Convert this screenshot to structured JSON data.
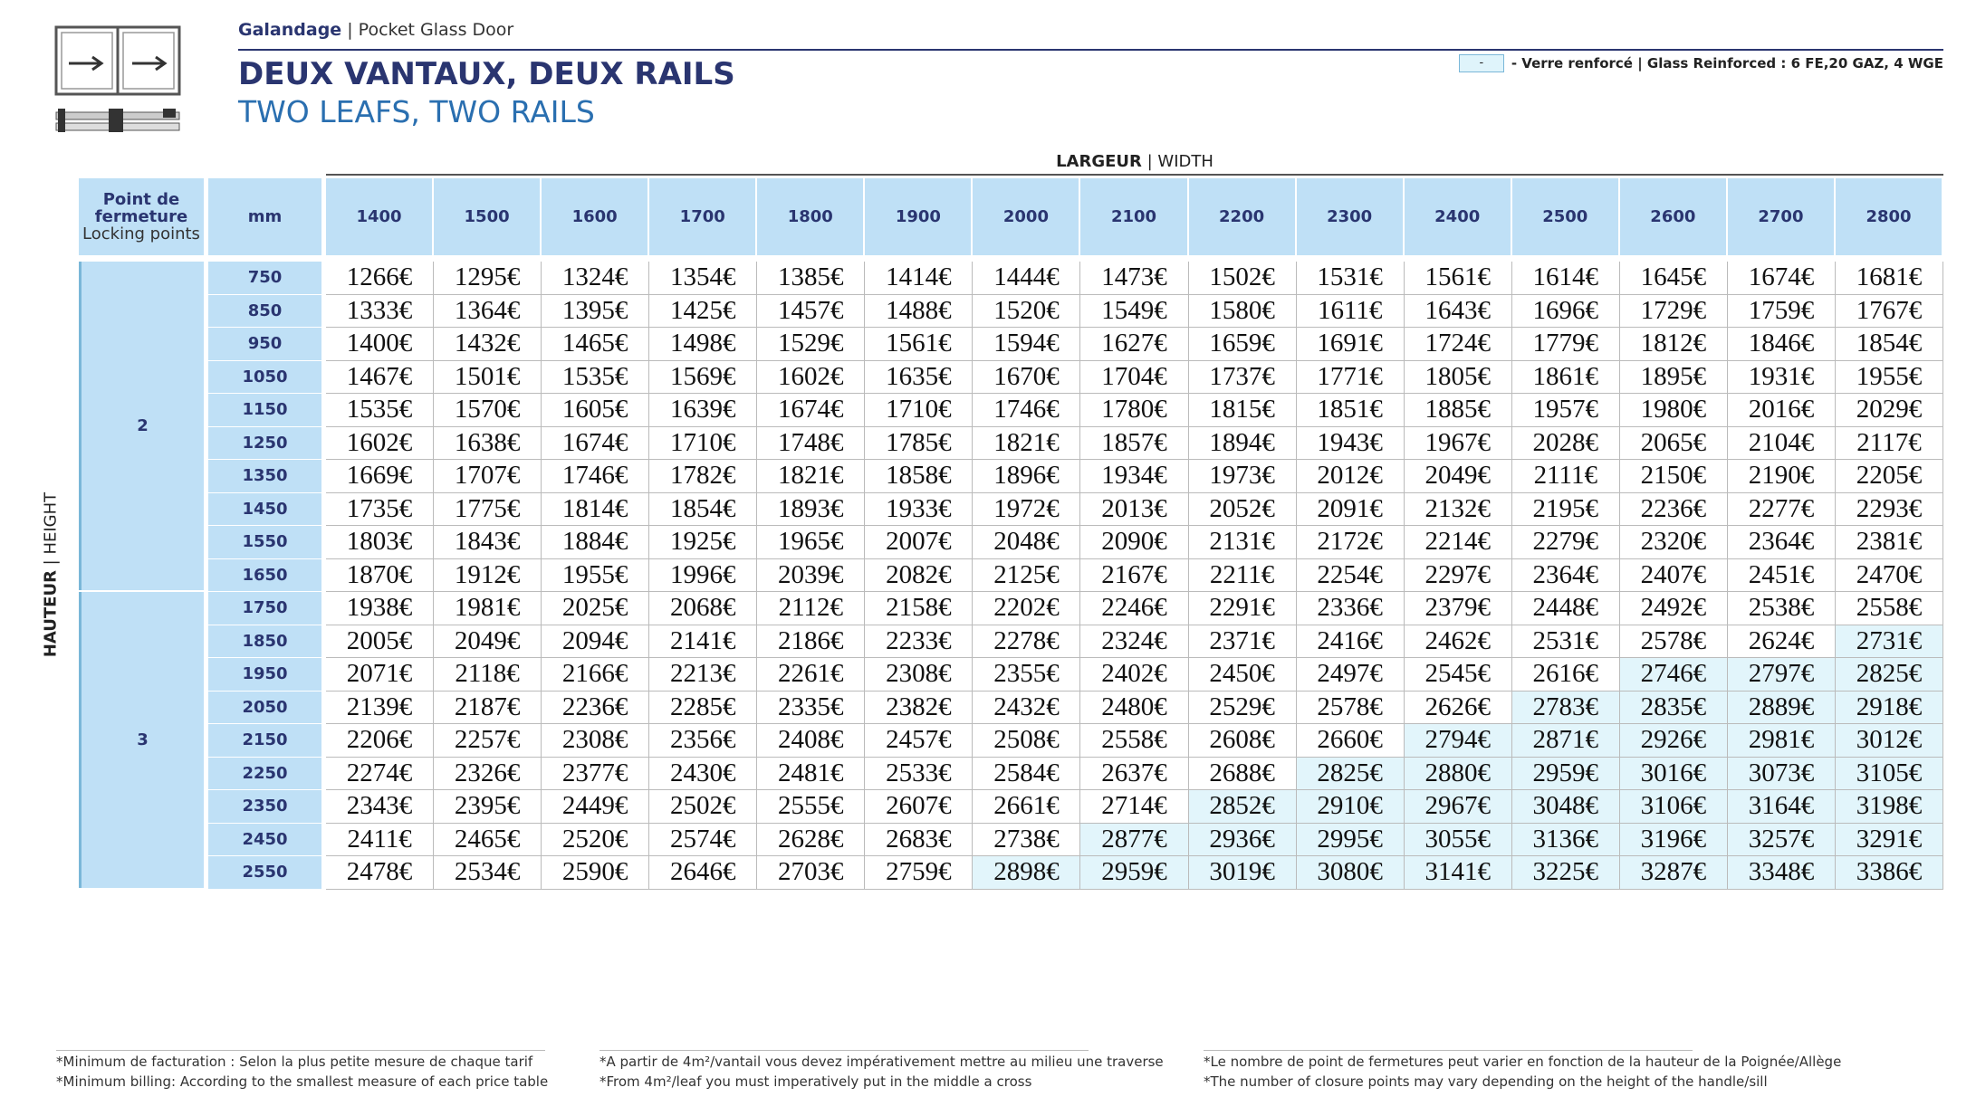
{
  "header": {
    "brand": "Galandage",
    "product": "Pocket Glass Door",
    "title": "DEUX VANTAUX, DEUX RAILS",
    "subtitle": "TWO LEAFS, TWO RAILS"
  },
  "legend": {
    "swatch": "-",
    "text": "- Verre renforcé | Glass Reinforced : 6 FE,20 GAZ, 4 WGE"
  },
  "table": {
    "width_label": "LARGEUR",
    "width_label_en": "WIDTH",
    "height_label": "HAUTEUR",
    "height_label_en": "HEIGHT",
    "points_header": "Point de fermeture",
    "points_header_en": "Locking points",
    "mm_header": "mm",
    "widths": [
      "1400",
      "1500",
      "1600",
      "1700",
      "1800",
      "1900",
      "2000",
      "2100",
      "2200",
      "2300",
      "2400",
      "2500",
      "2600",
      "2700",
      "2800"
    ],
    "groups": [
      {
        "points": "2",
        "rows": [
          {
            "height": "750",
            "prices": [
              "1266€",
              "1295€",
              "1324€",
              "1354€",
              "1385€",
              "1414€",
              "1444€",
              "1473€",
              "1502€",
              "1531€",
              "1561€",
              "1614€",
              "1645€",
              "1674€",
              "1681€"
            ],
            "reinforced": []
          },
          {
            "height": "850",
            "prices": [
              "1333€",
              "1364€",
              "1395€",
              "1425€",
              "1457€",
              "1488€",
              "1520€",
              "1549€",
              "1580€",
              "1611€",
              "1643€",
              "1696€",
              "1729€",
              "1759€",
              "1767€"
            ],
            "reinforced": []
          },
          {
            "height": "950",
            "prices": [
              "1400€",
              "1432€",
              "1465€",
              "1498€",
              "1529€",
              "1561€",
              "1594€",
              "1627€",
              "1659€",
              "1691€",
              "1724€",
              "1779€",
              "1812€",
              "1846€",
              "1854€"
            ],
            "reinforced": []
          },
          {
            "height": "1050",
            "prices": [
              "1467€",
              "1501€",
              "1535€",
              "1569€",
              "1602€",
              "1635€",
              "1670€",
              "1704€",
              "1737€",
              "1771€",
              "1805€",
              "1861€",
              "1895€",
              "1931€",
              "1955€"
            ],
            "reinforced": []
          },
          {
            "height": "1150",
            "prices": [
              "1535€",
              "1570€",
              "1605€",
              "1639€",
              "1674€",
              "1710€",
              "1746€",
              "1780€",
              "1815€",
              "1851€",
              "1885€",
              "1957€",
              "1980€",
              "2016€",
              "2029€"
            ],
            "reinforced": []
          },
          {
            "height": "1250",
            "prices": [
              "1602€",
              "1638€",
              "1674€",
              "1710€",
              "1748€",
              "1785€",
              "1821€",
              "1857€",
              "1894€",
              "1943€",
              "1967€",
              "2028€",
              "2065€",
              "2104€",
              "2117€"
            ],
            "reinforced": []
          },
          {
            "height": "1350",
            "prices": [
              "1669€",
              "1707€",
              "1746€",
              "1782€",
              "1821€",
              "1858€",
              "1896€",
              "1934€",
              "1973€",
              "2012€",
              "2049€",
              "2111€",
              "2150€",
              "2190€",
              "2205€"
            ],
            "reinforced": []
          },
          {
            "height": "1450",
            "prices": [
              "1735€",
              "1775€",
              "1814€",
              "1854€",
              "1893€",
              "1933€",
              "1972€",
              "2013€",
              "2052€",
              "2091€",
              "2132€",
              "2195€",
              "2236€",
              "2277€",
              "2293€"
            ],
            "reinforced": []
          },
          {
            "height": "1550",
            "prices": [
              "1803€",
              "1843€",
              "1884€",
              "1925€",
              "1965€",
              "2007€",
              "2048€",
              "2090€",
              "2131€",
              "2172€",
              "2214€",
              "2279€",
              "2320€",
              "2364€",
              "2381€"
            ],
            "reinforced": []
          },
          {
            "height": "1650",
            "prices": [
              "1870€",
              "1912€",
              "1955€",
              "1996€",
              "2039€",
              "2082€",
              "2125€",
              "2167€",
              "2211€",
              "2254€",
              "2297€",
              "2364€",
              "2407€",
              "2451€",
              "2470€"
            ],
            "reinforced": []
          }
        ]
      },
      {
        "points": "3",
        "rows": [
          {
            "height": "1750",
            "prices": [
              "1938€",
              "1981€",
              "2025€",
              "2068€",
              "2112€",
              "2158€",
              "2202€",
              "2246€",
              "2291€",
              "2336€",
              "2379€",
              "2448€",
              "2492€",
              "2538€",
              "2558€"
            ],
            "reinforced": []
          },
          {
            "height": "1850",
            "prices": [
              "2005€",
              "2049€",
              "2094€",
              "2141€",
              "2186€",
              "2233€",
              "2278€",
              "2324€",
              "2371€",
              "2416€",
              "2462€",
              "2531€",
              "2578€",
              "2624€",
              "2731€"
            ],
            "reinforced": [
              14
            ]
          },
          {
            "height": "1950",
            "prices": [
              "2071€",
              "2118€",
              "2166€",
              "2213€",
              "2261€",
              "2308€",
              "2355€",
              "2402€",
              "2450€",
              "2497€",
              "2545€",
              "2616€",
              "2746€",
              "2797€",
              "2825€"
            ],
            "reinforced": [
              12,
              13,
              14
            ]
          },
          {
            "height": "2050",
            "prices": [
              "2139€",
              "2187€",
              "2236€",
              "2285€",
              "2335€",
              "2382€",
              "2432€",
              "2480€",
              "2529€",
              "2578€",
              "2626€",
              "2783€",
              "2835€",
              "2889€",
              "2918€"
            ],
            "reinforced": [
              11,
              12,
              13,
              14
            ]
          },
          {
            "height": "2150",
            "prices": [
              "2206€",
              "2257€",
              "2308€",
              "2356€",
              "2408€",
              "2457€",
              "2508€",
              "2558€",
              "2608€",
              "2660€",
              "2794€",
              "2871€",
              "2926€",
              "2981€",
              "3012€"
            ],
            "reinforced": [
              10,
              11,
              12,
              13,
              14
            ]
          },
          {
            "height": "2250",
            "prices": [
              "2274€",
              "2326€",
              "2377€",
              "2430€",
              "2481€",
              "2533€",
              "2584€",
              "2637€",
              "2688€",
              "2825€",
              "2880€",
              "2959€",
              "3016€",
              "3073€",
              "3105€"
            ],
            "reinforced": [
              9,
              10,
              11,
              12,
              13,
              14
            ]
          },
          {
            "height": "2350",
            "prices": [
              "2343€",
              "2395€",
              "2449€",
              "2502€",
              "2555€",
              "2607€",
              "2661€",
              "2714€",
              "2852€",
              "2910€",
              "2967€",
              "3048€",
              "3106€",
              "3164€",
              "3198€"
            ],
            "reinforced": [
              8,
              9,
              10,
              11,
              12,
              13,
              14
            ]
          },
          {
            "height": "2450",
            "prices": [
              "2411€",
              "2465€",
              "2520€",
              "2574€",
              "2628€",
              "2683€",
              "2738€",
              "2877€",
              "2936€",
              "2995€",
              "3055€",
              "3136€",
              "3196€",
              "3257€",
              "3291€"
            ],
            "reinforced": [
              7,
              8,
              9,
              10,
              11,
              12,
              13,
              14
            ]
          },
          {
            "height": "2550",
            "prices": [
              "2478€",
              "2534€",
              "2590€",
              "2646€",
              "2703€",
              "2759€",
              "2898€",
              "2959€",
              "3019€",
              "3080€",
              "3141€",
              "3225€",
              "3287€",
              "3348€",
              "3386€"
            ],
            "reinforced": [
              6,
              7,
              8,
              9,
              10,
              11,
              12,
              13,
              14
            ]
          }
        ]
      }
    ]
  },
  "footnotes": [
    {
      "fr": "*Minimum de facturation : Selon la plus petite mesure de chaque tarif",
      "en": "*Minimum billing: According to the smallest measure of each price table"
    },
    {
      "fr": "*A partir de 4m²/vantail vous devez impérativement mettre au milieu une traverse",
      "en": "*From 4m²/leaf you must imperatively put in the middle a cross"
    },
    {
      "fr": "*Le nombre de point de fermetures peut varier en fonction de la hauteur de la Poignée/Allège",
      "en": "*The number of closure points may vary depending on the height of the handle/sill"
    }
  ]
}
